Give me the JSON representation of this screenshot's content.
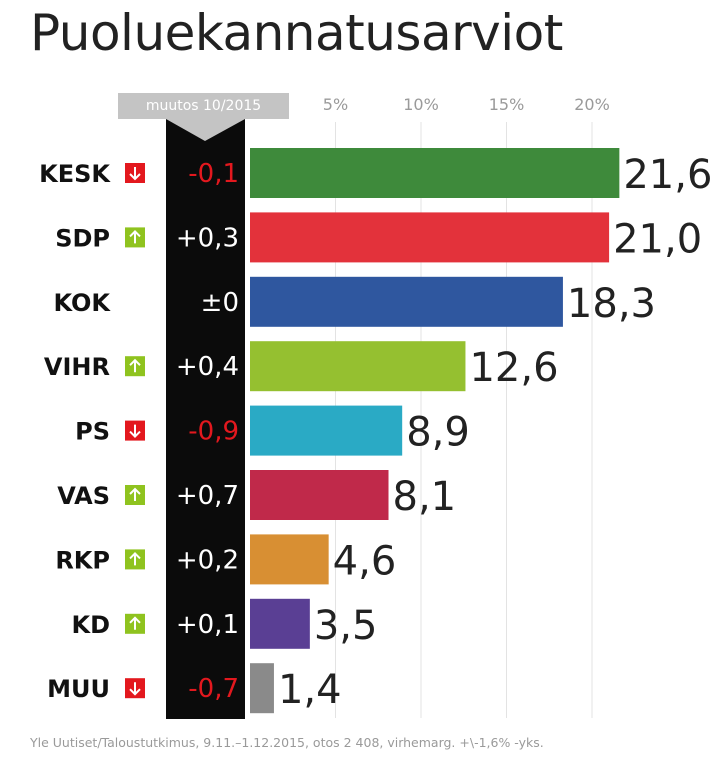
{
  "title": "Puoluekannatusarviot",
  "change_header": "muutos 10/2015",
  "footer": "Yle Uutiset/Taloustutkimus, 9.11.–1.12.2015, otos 2 408, virhemarg. +\\-1,6% -yks.",
  "colors": {
    "up": "#8fc31f",
    "down": "#e3181e",
    "change_positive": "#ffffff",
    "change_negative": "#e3181e"
  },
  "chart_data": {
    "type": "bar",
    "orientation": "horizontal",
    "xlim": [
      0,
      25
    ],
    "ticks": [
      {
        "value": 5,
        "label": "5%"
      },
      {
        "value": 10,
        "label": "10%"
      },
      {
        "value": 15,
        "label": "15%"
      },
      {
        "value": 20,
        "label": "20%"
      }
    ],
    "categories": [
      "KESK",
      "SDP",
      "KOK",
      "VIHR",
      "PS",
      "VAS",
      "RKP",
      "KD",
      "MUU"
    ],
    "values": [
      21.6,
      21.0,
      18.3,
      12.6,
      8.9,
      8.1,
      4.6,
      3.5,
      1.4
    ],
    "value_labels": [
      "21,6",
      "21,0",
      "18,3",
      "12,6",
      "8,9",
      "8,1",
      "4,6",
      "3,5",
      "1,4"
    ],
    "changes": [
      "-0,1",
      "+0,3",
      "±0",
      "+0,4",
      "-0,9",
      "+0,7",
      "+0,2",
      "+0,1",
      "-0,7"
    ],
    "trend": [
      "down",
      "up",
      "none",
      "up",
      "down",
      "up",
      "up",
      "up",
      "down"
    ],
    "bar_colors": [
      "#3e8a3b",
      "#e3323b",
      "#2f579f",
      "#95c030",
      "#2aaac5",
      "#c0294a",
      "#d88f33",
      "#5a3f94",
      "#8a8a8a"
    ],
    "grid": true
  }
}
